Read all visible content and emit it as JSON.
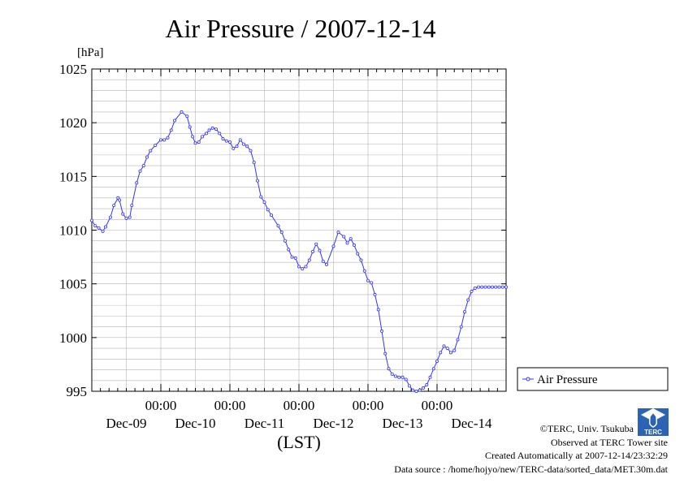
{
  "header": {
    "title": "Air Pressure / 2007-12-14",
    "y_unit": "[hPa]"
  },
  "chart_data": {
    "type": "line",
    "title": "Air Pressure / 2007-12-14",
    "ylabel": "[hPa]",
    "xlabel": "(LST)",
    "ylim": [
      995,
      1025
    ],
    "yticks": [
      995,
      1000,
      1005,
      1010,
      1015,
      1020,
      1025
    ],
    "xlim": [
      0,
      6
    ],
    "time_labels": [
      "00:00",
      "00:00",
      "00:00",
      "00:00",
      "00:00"
    ],
    "date_labels": [
      "Dec-09",
      "Dec-10",
      "Dec-11",
      "Dec-12",
      "Dec-13",
      "Dec-14"
    ],
    "grid": true,
    "legend": "right",
    "series": [
      {
        "name": "Air Pressure",
        "color": "#3333ff",
        "x": [
          0.0,
          0.05,
          0.1,
          0.16,
          0.2,
          0.27,
          0.32,
          0.38,
          0.4,
          0.45,
          0.5,
          0.55,
          0.58,
          0.65,
          0.7,
          0.75,
          0.8,
          0.85,
          0.92,
          1.0,
          1.05,
          1.1,
          1.15,
          1.2,
          1.3,
          1.38,
          1.42,
          1.46,
          1.5,
          1.55,
          1.6,
          1.66,
          1.7,
          1.75,
          1.8,
          1.85,
          1.9,
          1.95,
          2.0,
          2.05,
          2.1,
          2.15,
          2.2,
          2.25,
          2.3,
          2.35,
          2.4,
          2.45,
          2.5,
          2.55,
          2.6,
          2.7,
          2.75,
          2.8,
          2.85,
          2.9,
          2.95,
          3.0,
          3.05,
          3.1,
          3.15,
          3.2,
          3.25,
          3.3,
          3.35,
          3.4,
          3.5,
          3.57,
          3.65,
          3.7,
          3.75,
          3.8,
          3.85,
          3.9,
          3.95,
          4.0,
          4.05,
          4.1,
          4.15,
          4.2,
          4.25,
          4.3,
          4.35,
          4.4,
          4.45,
          4.5,
          4.55,
          4.6,
          4.65,
          4.7,
          4.75,
          4.8,
          4.85,
          4.9,
          4.95,
          5.0,
          5.05,
          5.1,
          5.15,
          5.2,
          5.25,
          5.3,
          5.35,
          5.4,
          5.45,
          5.5,
          5.55,
          5.6,
          5.65,
          5.7,
          5.75,
          5.8,
          5.85,
          5.9,
          5.95,
          6.0
        ],
        "values": [
          1010.9,
          1010.4,
          1010.2,
          1009.9,
          1010.3,
          1011.2,
          1012.3,
          1013.0,
          1012.8,
          1011.5,
          1011.1,
          1011.2,
          1012.3,
          1014.4,
          1015.5,
          1016.0,
          1016.8,
          1017.4,
          1017.9,
          1018.4,
          1018.4,
          1018.6,
          1019.3,
          1020.2,
          1021.0,
          1020.6,
          1019.6,
          1018.7,
          1018.1,
          1018.2,
          1018.7,
          1019.0,
          1019.3,
          1019.5,
          1019.4,
          1019.0,
          1018.5,
          1018.3,
          1018.2,
          1017.6,
          1017.8,
          1018.4,
          1018.0,
          1017.8,
          1017.4,
          1016.3,
          1014.6,
          1013.1,
          1012.6,
          1011.9,
          1011.4,
          1010.4,
          1009.8,
          1009.0,
          1008.2,
          1007.5,
          1007.4,
          1006.6,
          1006.4,
          1006.6,
          1007.2,
          1008.0,
          1008.7,
          1008.1,
          1007.1,
          1006.8,
          1008.5,
          1009.8,
          1009.4,
          1008.8,
          1009.2,
          1008.6,
          1007.8,
          1007.2,
          1006.2,
          1005.3,
          1005.1,
          1004.0,
          1002.6,
          1000.6,
          998.5,
          997.1,
          996.6,
          996.4,
          996.3,
          996.3,
          996.1,
          995.5,
          995.1,
          995.0,
          995.1,
          995.3,
          995.6,
          996.3,
          997.1,
          997.8,
          998.6,
          999.2,
          999.0,
          998.6,
          998.8,
          999.8,
          1001.0,
          1002.4,
          1003.5,
          1004.3,
          1004.6,
          1004.7,
          1004.7,
          1004.7,
          1004.7,
          1004.7,
          1004.7,
          1004.7,
          1004.7,
          1004.7
        ]
      }
    ]
  },
  "credits": {
    "copyright": "©TERC, Univ. Tsukuba",
    "observed": "Observed at TERC Tower site",
    "created": "Created Automatically at 2007-12-14/23:32:29",
    "source": "Data source : /home/hojyo/new/TERC-data/sorted_data/MET.30m.dat",
    "logo_text": "TERC"
  }
}
